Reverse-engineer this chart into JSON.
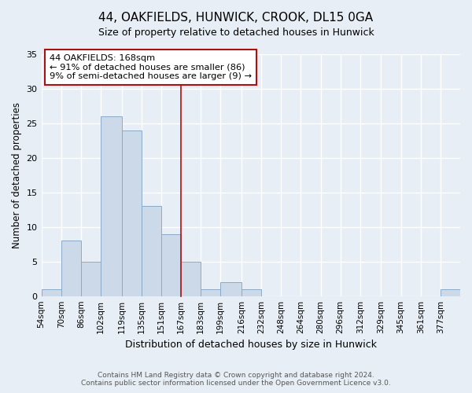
{
  "title": "44, OAKFIELDS, HUNWICK, CROOK, DL15 0GA",
  "subtitle": "Size of property relative to detached houses in Hunwick",
  "xlabel": "Distribution of detached houses by size in Hunwick",
  "ylabel": "Number of detached properties",
  "bar_color": "#ccd9e8",
  "bar_edge_color": "#8aaac8",
  "background_color": "#e8eef5",
  "grid_color": "#ffffff",
  "bin_labels": [
    "54sqm",
    "70sqm",
    "86sqm",
    "102sqm",
    "119sqm",
    "135sqm",
    "151sqm",
    "167sqm",
    "183sqm",
    "199sqm",
    "216sqm",
    "232sqm",
    "248sqm",
    "264sqm",
    "280sqm",
    "296sqm",
    "312sqm",
    "329sqm",
    "345sqm",
    "361sqm",
    "377sqm"
  ],
  "bin_edges": [
    54,
    70,
    86,
    102,
    119,
    135,
    151,
    167,
    183,
    199,
    216,
    232,
    248,
    264,
    280,
    296,
    312,
    329,
    345,
    361,
    377
  ],
  "bin_widths": [
    16,
    16,
    16,
    17,
    16,
    16,
    16,
    16,
    16,
    17,
    16,
    16,
    16,
    16,
    16,
    16,
    17,
    16,
    16,
    16,
    16
  ],
  "counts": [
    1,
    8,
    5,
    26,
    24,
    13,
    9,
    5,
    1,
    2,
    1,
    0,
    0,
    0,
    0,
    0,
    0,
    0,
    0,
    0,
    1
  ],
  "annotation_line1": "44 OAKFIELDS: 168sqm",
  "annotation_line2": "← 91% of detached houses are smaller (86)",
  "annotation_line3": "9% of semi-detached houses are larger (9) →",
  "vline_x": 167,
  "ylim": [
    0,
    35
  ],
  "yticks": [
    0,
    5,
    10,
    15,
    20,
    25,
    30,
    35
  ],
  "footer_line1": "Contains HM Land Registry data © Crown copyright and database right 2024.",
  "footer_line2": "Contains public sector information licensed under the Open Government Licence v3.0."
}
